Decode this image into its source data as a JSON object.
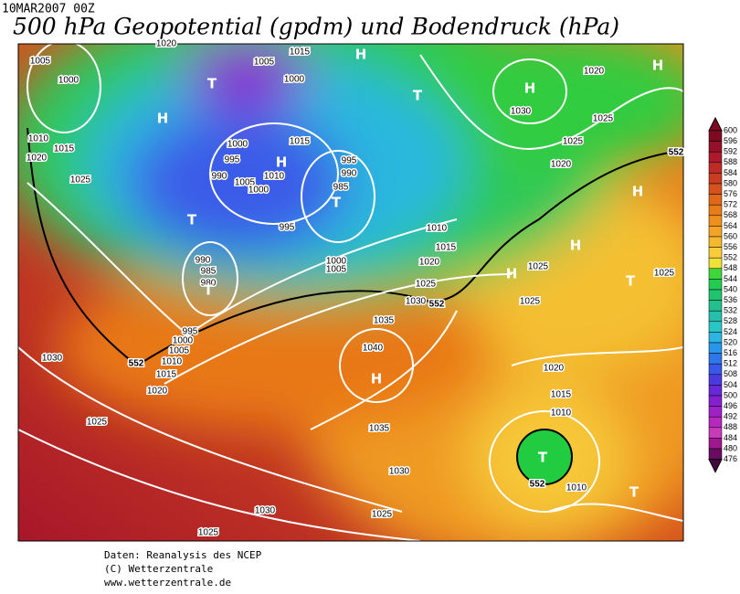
{
  "date": "10MAR2007 00Z",
  "title": "500 hPa Geopotential (gpdm) und Bodendruck (hPa)",
  "colorbar": {
    "ticks": [
      600,
      596,
      592,
      588,
      584,
      580,
      576,
      572,
      568,
      564,
      560,
      556,
      552,
      548,
      544,
      540,
      536,
      532,
      528,
      524,
      520,
      516,
      512,
      508,
      504,
      500,
      496,
      492,
      488,
      484,
      480,
      476
    ],
    "colors": [
      "#7e0a22",
      "#96102a",
      "#ac1a2c",
      "#bd2a28",
      "#ca3c22",
      "#d6521c",
      "#e06818",
      "#e87c18",
      "#ef901c",
      "#f4a424",
      "#f6b82e",
      "#f8cc3a",
      "#f0e03a",
      "#3cd83a",
      "#22cc52",
      "#1ec46e",
      "#22c08c",
      "#26c0aa",
      "#2ac6c6",
      "#2ab6e0",
      "#2896ea",
      "#2f76ec",
      "#3858e8",
      "#4a3ae0",
      "#6628d8",
      "#8420d0",
      "#a020c8",
      "#b828c0",
      "#c83ab8",
      "#a01890",
      "#6a0a60",
      "#44083e"
    ]
  },
  "isobar_labels": [
    1005,
    1000,
    1010,
    1015,
    1020,
    1025,
    1020,
    1015,
    1005,
    1000,
    1000,
    995,
    990,
    1005,
    1000,
    1010,
    1015,
    995,
    990,
    985,
    995,
    990,
    985,
    980,
    1000,
    1005,
    1010,
    1015,
    1020,
    1025,
    1030,
    1035,
    1040,
    995,
    1000,
    1005,
    1010,
    1015,
    1020,
    1030,
    1025,
    1035,
    1030,
    1030,
    1025,
    1025,
    1020,
    1025,
    1025,
    1030,
    1020,
    1025,
    1025,
    1025,
    1020,
    1015,
    1010,
    1010
  ],
  "contour_labels": [
    552,
    552,
    552,
    552
  ],
  "centers": [
    "H",
    "T",
    "H",
    "T",
    "H",
    "H",
    "H",
    "T",
    "T",
    "T",
    "H",
    "H",
    "H",
    "T",
    "H",
    "T",
    "T"
  ],
  "footer": [
    "Daten: Reanalysis des NCEP",
    "(C) Wetterzentrale",
    "www.wetterzentrale.de"
  ]
}
